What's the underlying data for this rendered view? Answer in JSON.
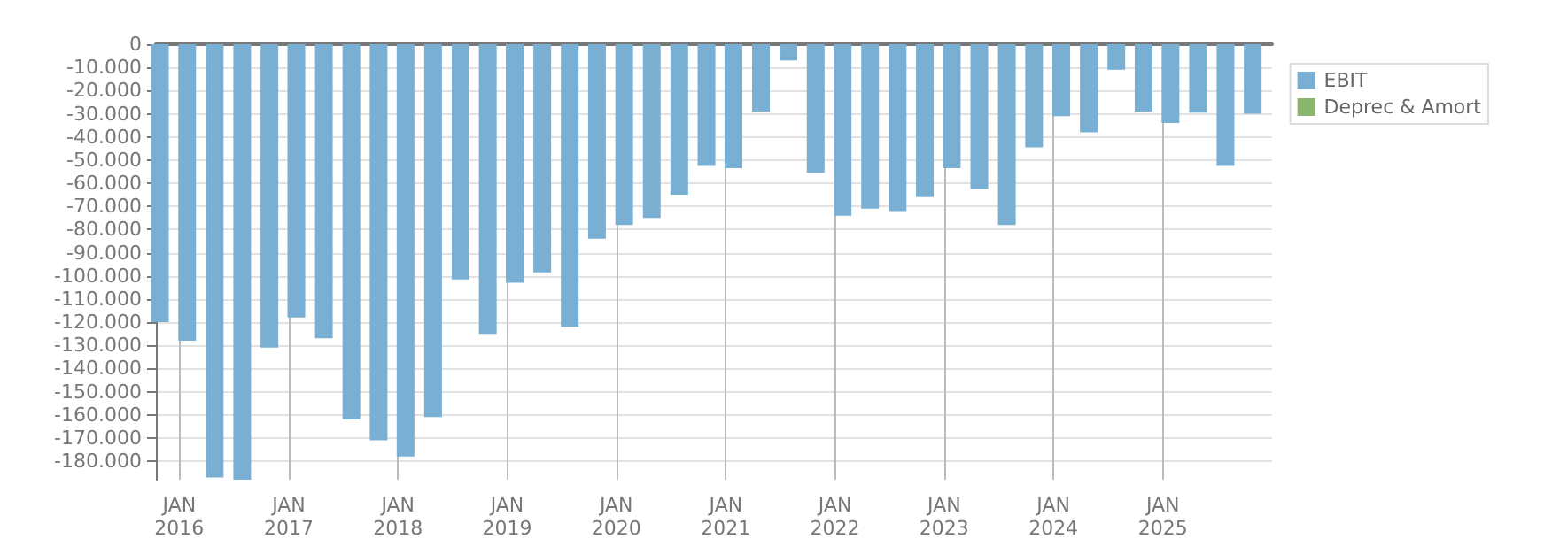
{
  "chart_data": {
    "type": "bar",
    "x": [
      "2015-11-30",
      "2016-02-29",
      "2016-05-31",
      "2016-08-31",
      "2016-11-30",
      "2017-02-28",
      "2017-05-31",
      "2017-08-31",
      "2017-11-30",
      "2018-02-28",
      "2018-05-31",
      "2018-08-31",
      "2018-11-30",
      "2019-02-28",
      "2019-05-31",
      "2019-08-31",
      "2019-11-30",
      "2020-02-29",
      "2020-05-31",
      "2020-08-31",
      "2020-11-30",
      "2021-02-28",
      "2021-05-31",
      "2021-08-31",
      "2021-11-30",
      "2022-02-28",
      "2022-05-31",
      "2022-08-31",
      "2022-11-30",
      "2023-02-28",
      "2023-05-31",
      "2023-08-31",
      "2023-11-30",
      "2024-02-29",
      "2024-05-31",
      "2024-08-31",
      "2024-11-30",
      "2025-02-28",
      "2025-05-31",
      "2025-08-31",
      "2025-11-30"
    ],
    "series": [
      {
        "name": "EBIT",
        "color": "#78afd2",
        "values": [
          -120000,
          -128000,
          -187000,
          -188000,
          -131000,
          -118000,
          -127000,
          -162000,
          -171000,
          -178000,
          -161000,
          -101500,
          -125000,
          -103000,
          -98500,
          -122000,
          -84000,
          -78000,
          -75000,
          -65000,
          -52500,
          -53500,
          -29000,
          -7000,
          -55500,
          -74000,
          -71000,
          -72000,
          -66000,
          -53500,
          -62500,
          -78000,
          -44500,
          -31000,
          -38000,
          -11000,
          -29000,
          -34000,
          -29500,
          -52500,
          -30000
        ]
      },
      {
        "name": "Deprec & Amort",
        "color": "#8ab56f",
        "values": [
          null,
          null,
          null,
          null,
          null,
          null,
          null,
          null,
          null,
          null,
          null,
          null,
          null,
          null,
          null,
          null,
          null,
          null,
          null,
          null,
          null,
          null,
          null,
          null,
          null,
          null,
          null,
          null,
          null,
          null,
          null,
          null,
          null,
          null,
          null,
          null,
          null,
          null,
          null,
          null,
          null
        ]
      }
    ],
    "xlim": [
      "2015-10-15",
      "2026-01-01"
    ],
    "xticks": [
      {
        "value": "2016-01-01",
        "label": "JAN\n2016"
      },
      {
        "value": "2017-01-01",
        "label": "JAN\n2017"
      },
      {
        "value": "2018-01-01",
        "label": "JAN\n2018"
      },
      {
        "value": "2019-01-01",
        "label": "JAN\n2019"
      },
      {
        "value": "2020-01-01",
        "label": "JAN\n2020"
      },
      {
        "value": "2021-01-01",
        "label": "JAN\n2021"
      },
      {
        "value": "2022-01-01",
        "label": "JAN\n2022"
      },
      {
        "value": "2023-01-01",
        "label": "JAN\n2023"
      },
      {
        "value": "2024-01-01",
        "label": "JAN\n2024"
      },
      {
        "value": "2025-01-01",
        "label": "JAN\n2025"
      }
    ],
    "ylim": [
      -188000,
      0
    ],
    "yticks": [
      0,
      {
        "value": -10000,
        "label": "-10.000"
      },
      {
        "value": -20000,
        "label": "-20.000"
      },
      {
        "value": -30000,
        "label": "-30.000"
      },
      {
        "value": -40000,
        "label": "-40.000"
      },
      {
        "value": -50000,
        "label": "-50.000"
      },
      {
        "value": -60000,
        "label": "-60.000"
      },
      {
        "value": -70000,
        "label": "-70.000"
      },
      {
        "value": -80000,
        "label": "-80.000"
      },
      {
        "value": -90000,
        "label": "-90.000"
      },
      {
        "value": -100000,
        "label": "-100.000"
      },
      {
        "value": -110000,
        "label": "-110.000"
      },
      {
        "value": -120000,
        "label": "-120.000"
      },
      {
        "value": -130000,
        "label": "-130.000"
      },
      {
        "value": -140000,
        "label": "-140.000"
      },
      {
        "value": -150000,
        "label": "-150.000"
      },
      {
        "value": -160000,
        "label": "-160.000"
      },
      {
        "value": -170000,
        "label": "-170.000"
      },
      {
        "value": -180000,
        "label": "-180.000"
      }
    ],
    "grid": true,
    "legend": "top right"
  }
}
